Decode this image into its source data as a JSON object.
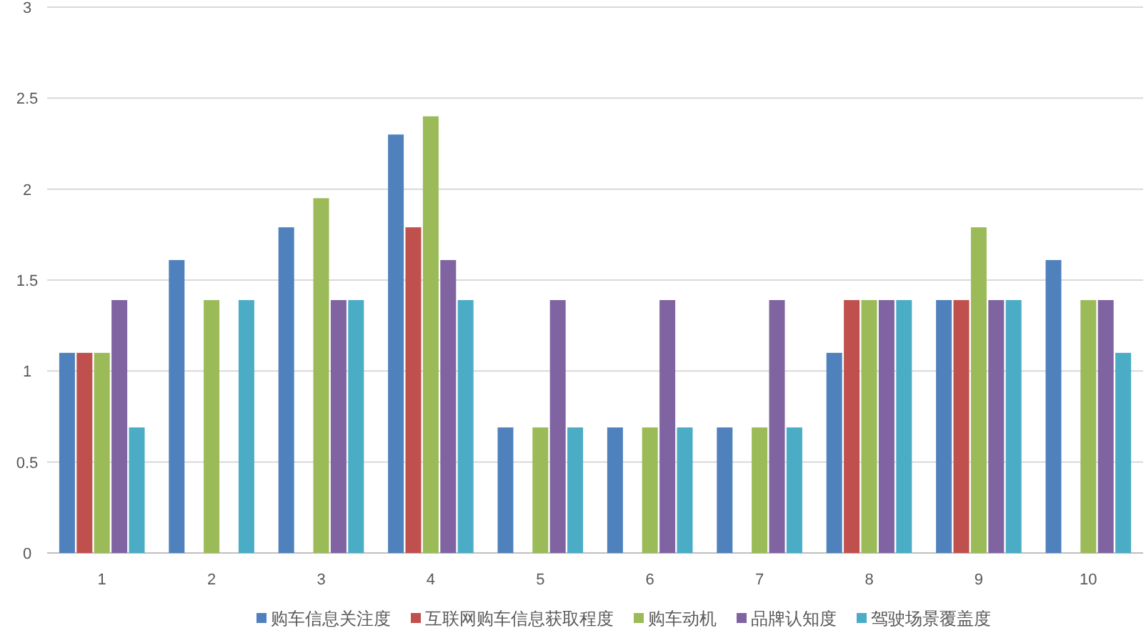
{
  "chart_data": {
    "type": "bar",
    "categories": [
      "1",
      "2",
      "3",
      "4",
      "5",
      "6",
      "7",
      "8",
      "9",
      "10"
    ],
    "series": [
      {
        "name": "购车信息关注度",
        "color": "#4f81bd",
        "values": [
          1.1,
          1.61,
          1.79,
          2.3,
          0.69,
          0.69,
          0.69,
          1.1,
          1.39,
          1.61
        ]
      },
      {
        "name": "互联网购车信息获取程度",
        "color": "#c0504d",
        "values": [
          1.1,
          null,
          null,
          1.79,
          null,
          null,
          null,
          1.39,
          1.39,
          null
        ]
      },
      {
        "name": "购车动机",
        "color": "#9bbb59",
        "values": [
          1.1,
          1.39,
          1.95,
          2.4,
          0.69,
          0.69,
          0.69,
          1.39,
          1.79,
          1.39
        ]
      },
      {
        "name": "品牌认知度",
        "color": "#8064a2",
        "values": [
          1.39,
          null,
          1.39,
          1.61,
          1.39,
          1.39,
          1.39,
          1.39,
          1.39,
          1.39
        ]
      },
      {
        "name": "驾驶场景覆盖度",
        "color": "#4bacc6",
        "values": [
          0.69,
          1.39,
          1.39,
          1.39,
          0.69,
          0.69,
          0.69,
          1.39,
          1.39,
          1.1
        ]
      }
    ],
    "ylim": [
      0,
      3
    ],
    "yticks": [
      0,
      0.5,
      1,
      1.5,
      2,
      2.5,
      3
    ],
    "grid": "y",
    "legend": "bottom"
  }
}
